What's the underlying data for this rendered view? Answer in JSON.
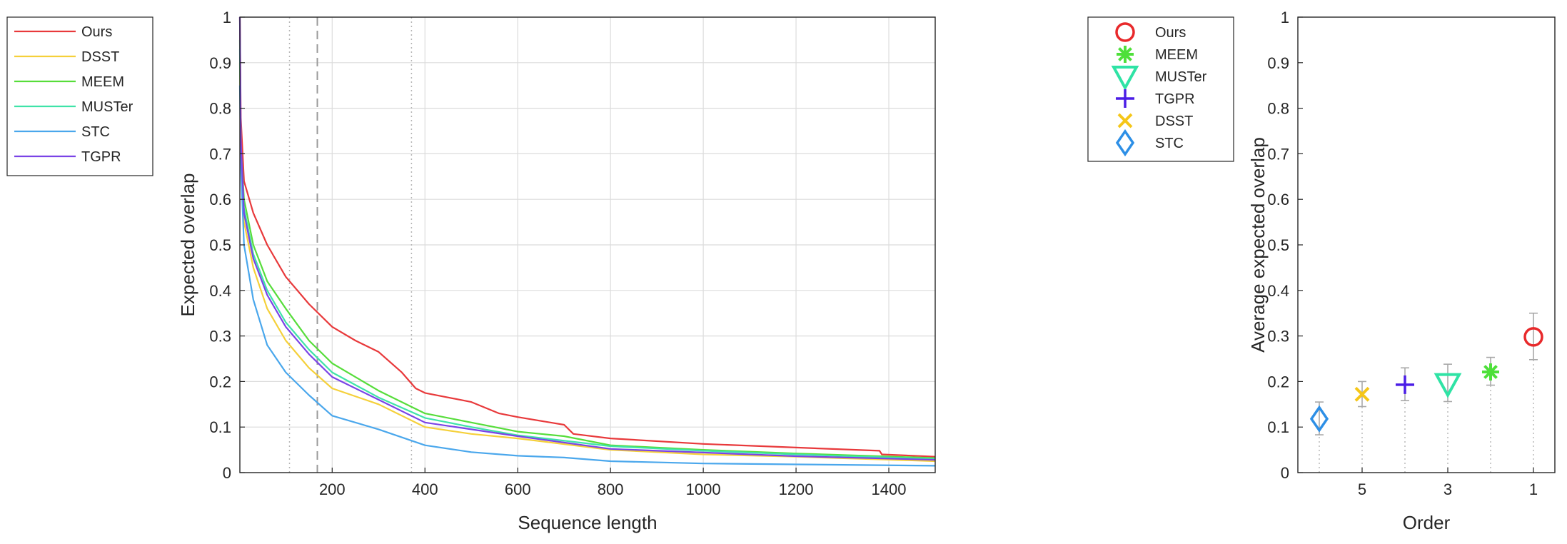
{
  "chart_data": [
    {
      "type": "line",
      "xlabel": "Sequence length",
      "ylabel": "Expected overlap",
      "xlim": [
        1,
        1500
      ],
      "ylim": [
        0,
        1
      ],
      "x_ticks": [
        "200",
        "400",
        "600",
        "800",
        "1000",
        "1200",
        "1400"
      ],
      "y_ticks": [
        "0",
        "0.1",
        "0.2",
        "0.3",
        "0.4",
        "0.5",
        "0.6",
        "0.7",
        "0.8",
        "0.9",
        "1"
      ],
      "grid": true,
      "legend_position": "outside-top-left",
      "reference_lines": [
        {
          "x": 108,
          "style": "dotted"
        },
        {
          "x": 168,
          "style": "dashed"
        },
        {
          "x": 371,
          "style": "dotted"
        }
      ],
      "series": [
        {
          "name": "Ours",
          "color": "#e8393b",
          "points": [
            [
              1,
              1.0
            ],
            [
              3,
              0.78
            ],
            [
              10,
              0.64
            ],
            [
              30,
              0.57
            ],
            [
              60,
              0.5
            ],
            [
              100,
              0.43
            ],
            [
              150,
              0.37
            ],
            [
              200,
              0.32
            ],
            [
              250,
              0.29
            ],
            [
              300,
              0.265
            ],
            [
              350,
              0.22
            ],
            [
              380,
              0.185
            ],
            [
              400,
              0.175
            ],
            [
              500,
              0.155
            ],
            [
              560,
              0.13
            ],
            [
              600,
              0.122
            ],
            [
              700,
              0.105
            ],
            [
              720,
              0.085
            ],
            [
              800,
              0.075
            ],
            [
              1000,
              0.063
            ],
            [
              1200,
              0.055
            ],
            [
              1380,
              0.048
            ],
            [
              1385,
              0.04
            ],
            [
              1500,
              0.035
            ]
          ]
        },
        {
          "name": "DSST",
          "color": "#f5d03a",
          "points": [
            [
              1,
              0.9
            ],
            [
              3,
              0.7
            ],
            [
              10,
              0.55
            ],
            [
              30,
              0.45
            ],
            [
              60,
              0.36
            ],
            [
              100,
              0.29
            ],
            [
              150,
              0.23
            ],
            [
              200,
              0.185
            ],
            [
              300,
              0.15
            ],
            [
              400,
              0.1
            ],
            [
              500,
              0.085
            ],
            [
              600,
              0.075
            ],
            [
              800,
              0.05
            ],
            [
              1000,
              0.04
            ],
            [
              1200,
              0.035
            ],
            [
              1500,
              0.025
            ]
          ]
        },
        {
          "name": "MEEM",
          "color": "#56dd3a",
          "points": [
            [
              1,
              0.95
            ],
            [
              3,
              0.72
            ],
            [
              10,
              0.6
            ],
            [
              30,
              0.5
            ],
            [
              60,
              0.42
            ],
            [
              100,
              0.36
            ],
            [
              150,
              0.29
            ],
            [
              200,
              0.24
            ],
            [
              300,
              0.18
            ],
            [
              400,
              0.13
            ],
            [
              500,
              0.11
            ],
            [
              600,
              0.09
            ],
            [
              700,
              0.08
            ],
            [
              800,
              0.06
            ],
            [
              1000,
              0.05
            ],
            [
              1200,
              0.042
            ],
            [
              1500,
              0.032
            ]
          ]
        },
        {
          "name": "MUSTer",
          "color": "#3fe3a8",
          "points": [
            [
              1,
              0.93
            ],
            [
              3,
              0.71
            ],
            [
              10,
              0.58
            ],
            [
              30,
              0.48
            ],
            [
              60,
              0.4
            ],
            [
              100,
              0.33
            ],
            [
              150,
              0.27
            ],
            [
              200,
              0.22
            ],
            [
              300,
              0.165
            ],
            [
              400,
              0.12
            ],
            [
              500,
              0.1
            ],
            [
              600,
              0.082
            ],
            [
              800,
              0.058
            ],
            [
              1000,
              0.048
            ],
            [
              1200,
              0.04
            ],
            [
              1500,
              0.03
            ]
          ]
        },
        {
          "name": "STC",
          "color": "#4aa7ec",
          "points": [
            [
              1,
              0.85
            ],
            [
              3,
              0.68
            ],
            [
              10,
              0.5
            ],
            [
              30,
              0.38
            ],
            [
              60,
              0.28
            ],
            [
              100,
              0.22
            ],
            [
              150,
              0.17
            ],
            [
              200,
              0.125
            ],
            [
              300,
              0.095
            ],
            [
              400,
              0.06
            ],
            [
              500,
              0.045
            ],
            [
              600,
              0.037
            ],
            [
              700,
              0.033
            ],
            [
              800,
              0.025
            ],
            [
              1000,
              0.02
            ],
            [
              1200,
              0.018
            ],
            [
              1500,
              0.015
            ]
          ]
        },
        {
          "name": "TGPR",
          "color": "#7a43e6",
          "points": [
            [
              1,
              1.0
            ],
            [
              3,
              0.73
            ],
            [
              10,
              0.57
            ],
            [
              30,
              0.47
            ],
            [
              60,
              0.39
            ],
            [
              100,
              0.32
            ],
            [
              150,
              0.26
            ],
            [
              200,
              0.21
            ],
            [
              300,
              0.16
            ],
            [
              400,
              0.11
            ],
            [
              500,
              0.095
            ],
            [
              600,
              0.08
            ],
            [
              800,
              0.052
            ],
            [
              1000,
              0.044
            ],
            [
              1200,
              0.036
            ],
            [
              1500,
              0.028
            ]
          ]
        }
      ]
    },
    {
      "type": "scatter",
      "xlabel": "Order",
      "ylabel": "Average expected overlap",
      "xlim": [
        0.5,
        6.5
      ],
      "ylim": [
        0,
        1
      ],
      "x_reversed": true,
      "x_ticks": [
        "5",
        "3",
        "1"
      ],
      "y_ticks": [
        "0",
        "0.1",
        "0.2",
        "0.3",
        "0.4",
        "0.5",
        "0.6",
        "0.7",
        "0.8",
        "0.9",
        "1"
      ],
      "grid": false,
      "legend_position": "outside-top-left",
      "series": [
        {
          "name": "Ours",
          "marker": "circle",
          "color": "#e8292b",
          "order": 1,
          "value": 0.298,
          "err_low": 0.248,
          "err_high": 0.35
        },
        {
          "name": "MEEM",
          "marker": "asterisk",
          "color": "#4ee03a",
          "order": 2,
          "value": 0.221,
          "err_low": 0.192,
          "err_high": 0.253
        },
        {
          "name": "MUSTer",
          "marker": "triangle-down",
          "color": "#2fe3a5",
          "order": 3,
          "value": 0.195,
          "err_low": 0.156,
          "err_high": 0.238
        },
        {
          "name": "TGPR",
          "marker": "plus",
          "color": "#4b1de6",
          "order": 4,
          "value": 0.193,
          "err_low": 0.158,
          "err_high": 0.23
        },
        {
          "name": "DSST",
          "marker": "x",
          "color": "#f5c618",
          "order": 5,
          "value": 0.172,
          "err_low": 0.145,
          "err_high": 0.2
        },
        {
          "name": "STC",
          "marker": "diamond",
          "color": "#2d8fe6",
          "order": 6,
          "value": 0.118,
          "err_low": 0.083,
          "err_high": 0.155
        }
      ]
    }
  ]
}
